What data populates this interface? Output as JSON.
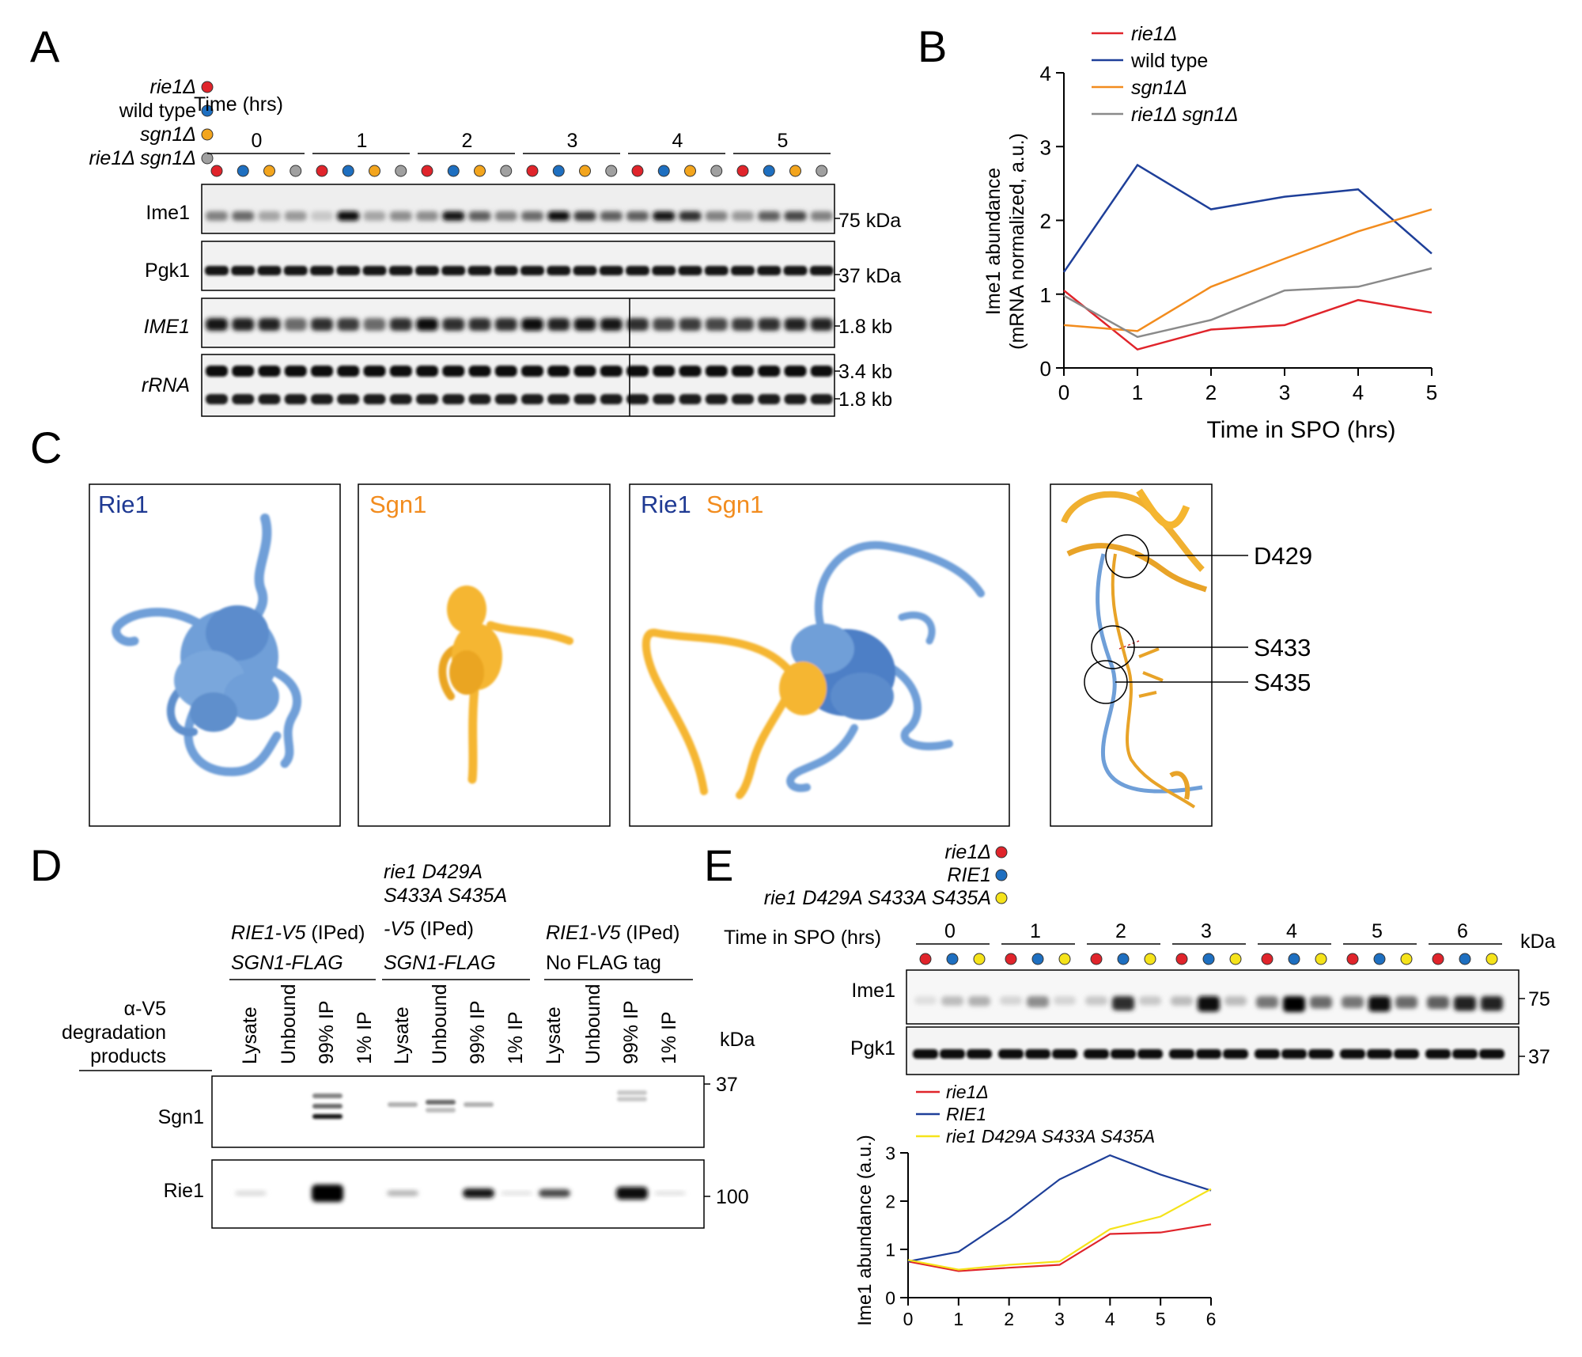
{
  "panels": {
    "A": {
      "letter": "A",
      "legend": [
        {
          "label": "rie1Δ",
          "color": "#e0242b"
        },
        {
          "label": "wild type",
          "color": "#1e6fc0"
        },
        {
          "label": "sgn1Δ",
          "color": "#f3a51d"
        },
        {
          "label": "rie1Δ sgn1Δ",
          "color": "#a0a0a0"
        }
      ],
      "time_label": "Time (hrs)",
      "timepoints": [
        "0",
        "1",
        "2",
        "3",
        "4",
        "5"
      ],
      "blots": [
        {
          "name": "Ime1",
          "marker": "75 kDa"
        },
        {
          "name": "Pgk1",
          "marker": "37 kDa"
        },
        {
          "name": "IME1",
          "marker": "1.8 kb"
        },
        {
          "name": "rRNA",
          "marker_top": "3.4 kb",
          "marker_bottom": "1.8 kb"
        }
      ],
      "ime1_intensity": [
        [
          0.45,
          0.55,
          0.3,
          0.35
        ],
        [
          0.15,
          0.95,
          0.3,
          0.4
        ],
        [
          0.4,
          0.9,
          0.6,
          0.45
        ],
        [
          0.55,
          0.95,
          0.75,
          0.6
        ],
        [
          0.6,
          0.9,
          0.8,
          0.45
        ],
        [
          0.35,
          0.6,
          0.7,
          0.45
        ]
      ],
      "ime1_rna_intensity": [
        [
          0.9,
          0.85,
          0.85,
          0.55
        ],
        [
          0.8,
          0.75,
          0.55,
          0.8
        ],
        [
          0.95,
          0.8,
          0.8,
          0.8
        ],
        [
          0.95,
          0.85,
          0.9,
          0.9
        ],
        [
          0.8,
          0.7,
          0.75,
          0.7
        ],
        [
          0.75,
          0.8,
          0.85,
          0.85
        ]
      ]
    },
    "B": {
      "letter": "B",
      "chart_data": {
        "type": "line",
        "x": [
          0,
          1,
          2,
          3,
          4,
          5
        ],
        "xlabel": "Time in SPO (hrs)",
        "ylabel_line1": "Ime1 abundance",
        "ylabel_line2": "(mRNA normalized, a.u.)",
        "xlim": [
          0,
          5
        ],
        "ylim": [
          0,
          4
        ],
        "xticks": [
          "0",
          "1",
          "2",
          "3",
          "4",
          "5"
        ],
        "yticks": [
          "0",
          "1",
          "2",
          "3",
          "4"
        ],
        "legend_position": "top-left",
        "series": [
          {
            "name": "rie1Δ",
            "italic": true,
            "color": "#e0242b",
            "values": [
              1.05,
              0.25,
              0.52,
              0.58,
              0.92,
              0.75
            ]
          },
          {
            "name": "wild type",
            "italic": false,
            "color": "#1e3f99",
            "values": [
              1.3,
              2.75,
              2.15,
              2.32,
              2.42,
              1.55
            ]
          },
          {
            "name": "sgn1Δ",
            "italic": true,
            "color": "#f28c1e",
            "values": [
              0.58,
              0.5,
              1.1,
              1.48,
              1.85,
              2.15
            ]
          },
          {
            "name": "rie1Δ sgn1Δ",
            "italic": true,
            "color": "#8a8a8a",
            "values": [
              0.98,
              0.42,
              0.65,
              1.05,
              1.1,
              1.35
            ]
          }
        ]
      }
    },
    "C": {
      "letter": "C",
      "boxes": [
        {
          "title1": "Rie1",
          "title1_color": "#1f3a93",
          "title2": ""
        },
        {
          "title1": "Sgn1",
          "title1_color": "#f28c1e",
          "title2": ""
        },
        {
          "title1": "Rie1",
          "title1_color": "#1f3a93",
          "title2": "Sgn1",
          "title2_color": "#f28c1e"
        }
      ],
      "residues": [
        "D429",
        "S433",
        "S435"
      ],
      "rie1_color": "#6f9fd8",
      "sgn1_color": "#f5b630"
    },
    "D": {
      "letter": "D",
      "group1_line1": "RIE1-V5",
      "group1_line1b": " (IPed)",
      "group1_line2": "SGN1-FLAG",
      "group2_line1": "rie1 D429A",
      "group2_line2": "S433A S435A",
      "group2_line3": "-V5",
      "group2_line3b": " (IPed)",
      "group2_line4": "SGN1-FLAG",
      "group3_line1": "RIE1-V5",
      "group3_line1b": " (IPed)",
      "group3_line2": "No FLAG tag",
      "lanes": [
        "Lysate",
        "Unbound",
        "99% IP",
        "1% IP",
        "Lysate",
        "Unbound",
        "99% IP",
        "1% IP",
        "Lysate",
        "Unbound",
        "99% IP",
        "1% IP"
      ],
      "side_label1": "α-V5",
      "side_label2": "degradation",
      "side_label3": "products",
      "blots": [
        {
          "name": "Sgn1",
          "marker": "37"
        },
        {
          "name": "Rie1",
          "marker": "100"
        }
      ],
      "kda": "kDa"
    },
    "E": {
      "letter": "E",
      "legend": [
        {
          "label": "rie1Δ",
          "color": "#e0242b"
        },
        {
          "label": "RIE1",
          "color": "#1e6fc0"
        },
        {
          "label": "rie1 D429A S433A S435A",
          "color": "#f5e31a"
        }
      ],
      "time_label": "Time in SPO (hrs)",
      "timepoints": [
        "0",
        "1",
        "2",
        "3",
        "4",
        "5",
        "6"
      ],
      "kda": "kDa",
      "blots": [
        {
          "name": "Ime1",
          "marker": "75"
        },
        {
          "name": "Pgk1",
          "marker": "37"
        }
      ],
      "ime1_intensity": [
        [
          0.05,
          0.2,
          0.25
        ],
        [
          0.1,
          0.4,
          0.1
        ],
        [
          0.15,
          0.8,
          0.15
        ],
        [
          0.2,
          0.95,
          0.2
        ],
        [
          0.5,
          1.0,
          0.55
        ],
        [
          0.5,
          0.95,
          0.55
        ],
        [
          0.6,
          0.85,
          0.85
        ]
      ],
      "chart_data": {
        "type": "line",
        "x": [
          0,
          1,
          2,
          3,
          4,
          5,
          6
        ],
        "xlabel": "",
        "ylabel": "Ime1 abundance (a.u.)",
        "xlim": [
          0,
          6
        ],
        "ylim": [
          0,
          3
        ],
        "xticks": [
          "0",
          "1",
          "2",
          "3",
          "4",
          "5",
          "6"
        ],
        "yticks": [
          "0",
          "1",
          "2",
          "3"
        ],
        "legend_position": "top-left",
        "series": [
          {
            "name": "rie1Δ",
            "italic": true,
            "color": "#e0242b",
            "values": [
              0.75,
              0.55,
              0.62,
              0.68,
              1.32,
              1.35,
              1.52
            ]
          },
          {
            "name": "RIE1",
            "italic": true,
            "color": "#1e3f99",
            "values": [
              0.75,
              0.95,
              1.65,
              2.45,
              2.95,
              2.55,
              2.22
            ]
          },
          {
            "name": "rie1 D429A S433A S435A",
            "italic": true,
            "color": "#f5e31a",
            "values": [
              0.78,
              0.58,
              0.68,
              0.75,
              1.42,
              1.68,
              2.25
            ]
          }
        ]
      }
    }
  }
}
